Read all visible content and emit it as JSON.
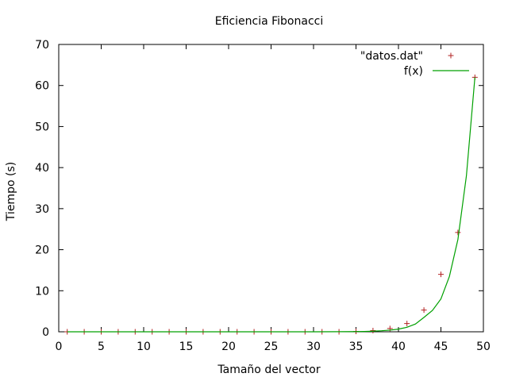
{
  "chart_data": {
    "type": "scatter",
    "title": "Eficiencia Fibonacci",
    "xlabel": "Tamaño del vector",
    "ylabel": "Tiempo (s)",
    "xlim": [
      0,
      50
    ],
    "ylim": [
      0,
      70
    ],
    "x_ticks": [
      "0",
      "5",
      "10",
      "15",
      "20",
      "25",
      "30",
      "35",
      "40",
      "45",
      "50"
    ],
    "y_ticks": [
      "0",
      "10",
      "20",
      "30",
      "40",
      "50",
      "60",
      "70"
    ],
    "grid": false,
    "legend_position": "top-right",
    "series": [
      {
        "name": "\"datos.dat\"",
        "style": "points",
        "marker": "plus",
        "color": "#b22222",
        "x": [
          1,
          3,
          5,
          7,
          9,
          11,
          13,
          15,
          17,
          19,
          21,
          23,
          25,
          27,
          29,
          31,
          33,
          35,
          37,
          39,
          41,
          43,
          45,
          47,
          49
        ],
        "y": [
          0,
          0,
          0,
          0,
          0,
          0,
          0,
          0,
          0,
          0,
          0,
          0,
          0,
          0,
          0,
          0,
          0,
          0.1,
          0.3,
          0.8,
          2.0,
          5.3,
          14.0,
          24.2,
          62.0
        ]
      },
      {
        "name": "f(x)",
        "style": "line",
        "color": "#00a000",
        "x": [
          1,
          5,
          10,
          15,
          20,
          25,
          30,
          33,
          35,
          36,
          37,
          38,
          39,
          40,
          41,
          42,
          43,
          44,
          45,
          46,
          47,
          48,
          49
        ],
        "y": [
          0,
          0,
          0,
          0,
          0,
          0,
          0,
          0.02,
          0.05,
          0.08,
          0.15,
          0.25,
          0.4,
          0.65,
          1.1,
          1.9,
          3.5,
          5.2,
          8.0,
          13.5,
          22.5,
          38.0,
          62.0
        ]
      }
    ]
  }
}
